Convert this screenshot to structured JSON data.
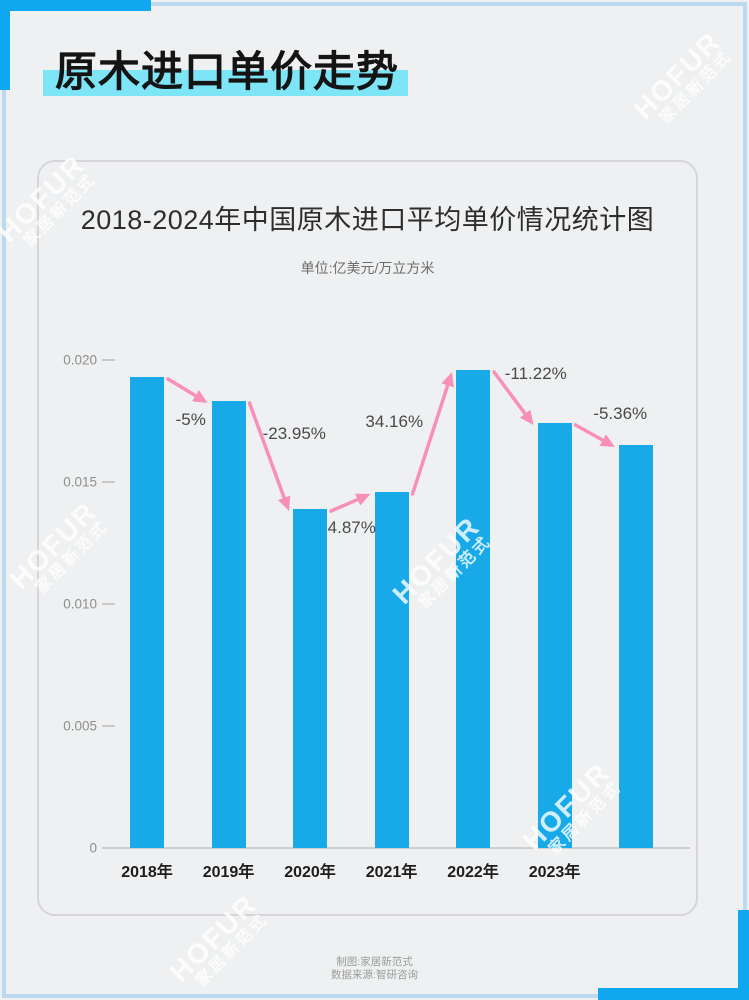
{
  "header": {
    "title": "原木进口单价走势"
  },
  "watermark": {
    "brand": "HOFUR",
    "subtitle": "家居新范式"
  },
  "footer": {
    "credit": "制图:家居新范式",
    "source": "数据来源:智研咨询"
  },
  "chart_data": {
    "type": "bar",
    "title": "2018-2024年中国原木进口平均单价情况统计图",
    "unit_label": "单位:亿美元/万立方米",
    "categories": [
      "2018年",
      "2019年",
      "2020年",
      "2021年",
      "2022年",
      "2023年",
      ""
    ],
    "values": [
      0.0193,
      0.0183,
      0.0139,
      0.0146,
      0.0196,
      0.0174,
      0.0165
    ],
    "change_labels": [
      "-5%",
      "-23.95%",
      "4.87%",
      "34.16%",
      "-11.22%",
      "-5.36%"
    ],
    "y_ticks": [
      {
        "value": 0,
        "label": "0"
      },
      {
        "value": 0.005,
        "label": "0.005"
      },
      {
        "value": 0.01,
        "label": "0.010"
      },
      {
        "value": 0.015,
        "label": "0.015"
      },
      {
        "value": 0.02,
        "label": "0.020"
      }
    ],
    "ylim": [
      0,
      0.02
    ],
    "xlabel": "",
    "ylabel": "",
    "grid": false,
    "legend": false,
    "colors": {
      "bar": "#18a9e9",
      "arrow": "#f78fb9",
      "title_highlight": "#7de5f6",
      "corner_bracket": "#0fa7ef",
      "page_border": "#bcd9ee"
    }
  }
}
